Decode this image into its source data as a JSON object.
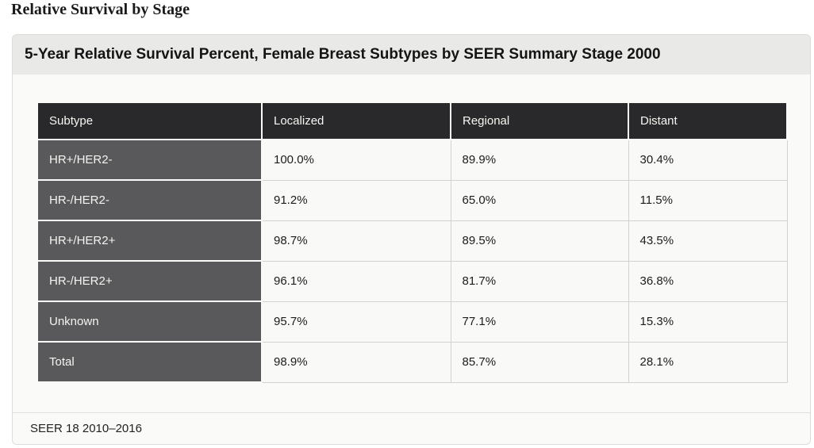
{
  "page": {
    "title": "Relative Survival by Stage"
  },
  "panel": {
    "title": "5-Year Relative Survival Percent, Female Breast Subtypes by SEER Summary Stage 2000",
    "footer": "SEER 18 2010–2016"
  },
  "chart_data": {
    "type": "table",
    "title": "5-Year Relative Survival Percent, Female Breast Subtypes by SEER Summary Stage 2000",
    "source_label": "SEER 18 2010–2016",
    "unit": "%",
    "columns": [
      "Subtype",
      "Localized",
      "Regional",
      "Distant"
    ],
    "rows": [
      {
        "subtype": "HR+/HER2-",
        "values": [
          "100.0%",
          "89.9%",
          "30.4%"
        ]
      },
      {
        "subtype": "HR-/HER2-",
        "values": [
          "91.2%",
          "65.0%",
          "11.5%"
        ]
      },
      {
        "subtype": "HR+/HER2+",
        "values": [
          "98.7%",
          "89.5%",
          "43.5%"
        ]
      },
      {
        "subtype": "HR-/HER2+",
        "values": [
          "96.1%",
          "81.7%",
          "36.8%"
        ]
      },
      {
        "subtype": "Unknown",
        "values": [
          "95.7%",
          "77.1%",
          "15.3%"
        ]
      },
      {
        "subtype": "Total",
        "values": [
          "98.9%",
          "85.7%",
          "28.1%"
        ]
      }
    ]
  },
  "colors": {
    "table_header_bg": "#29292b",
    "row_header_bg": "#59595b",
    "data_cell_bg": "#f9f9f7",
    "panel_header_bg": "#e9e9e7",
    "panel_bg": "#fafaf8",
    "cell_border": "#d2d2d0"
  }
}
